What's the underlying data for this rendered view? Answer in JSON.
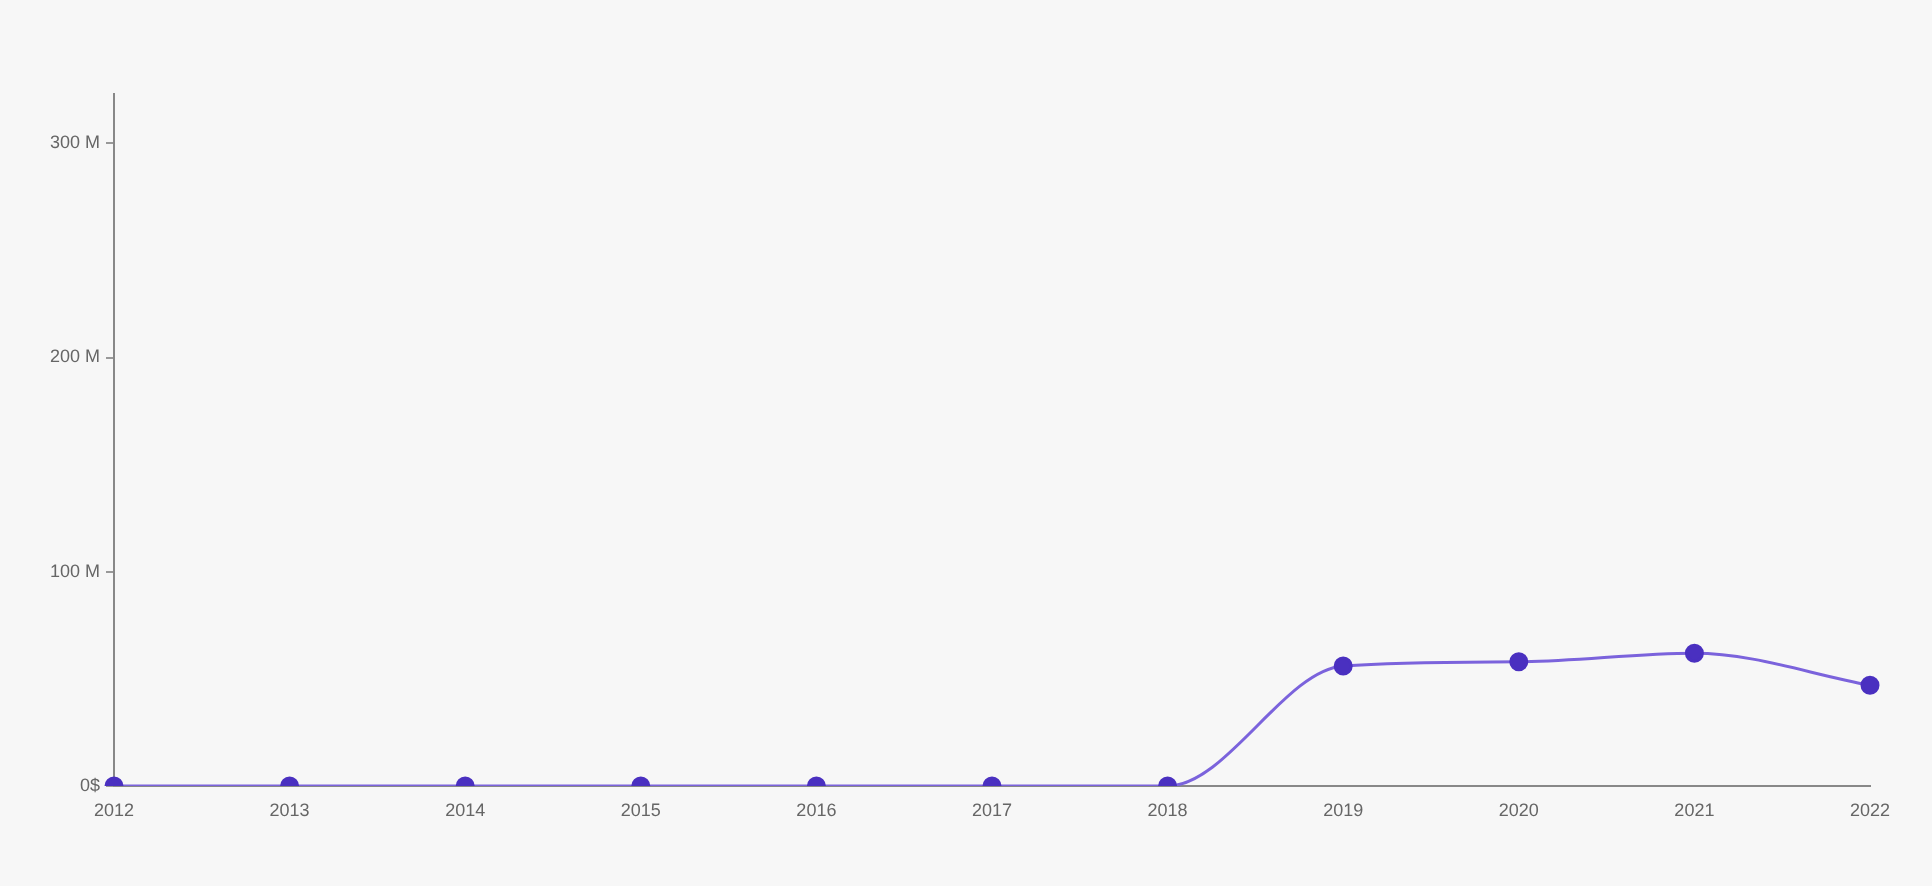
{
  "chart_data": {
    "type": "line",
    "categories": [
      "2012",
      "2013",
      "2014",
      "2015",
      "2016",
      "2017",
      "2018",
      "2019",
      "2020",
      "2021",
      "2022"
    ],
    "series": [
      {
        "color": "#7b63dc",
        "values": [
          0,
          0,
          0,
          0,
          0,
          0,
          0,
          56,
          58,
          62,
          47
        ]
      }
    ],
    "ylim": [
      0,
      323
    ],
    "yticks": [
      {
        "value": 0,
        "label": "0$"
      },
      {
        "value": 100,
        "label": "100 M"
      },
      {
        "value": 200,
        "label": "200 M"
      },
      {
        "value": 300,
        "label": "300 M"
      }
    ],
    "grid": false,
    "legend": false,
    "marker": "circle",
    "line_style": "solid"
  }
}
